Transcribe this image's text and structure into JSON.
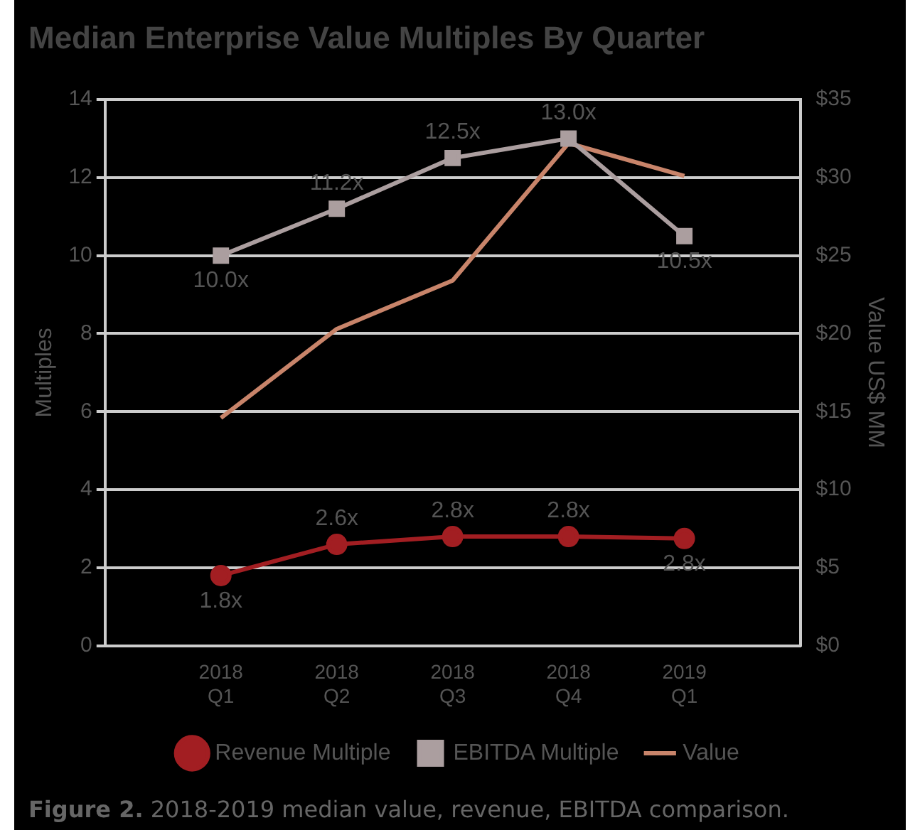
{
  "chart_data": {
    "type": "line",
    "title": "Median Enterprise Value Multiples By Quarter",
    "ylabel": "Multiples",
    "y2label": "Value US$ MM",
    "categories": [
      "2018 Q1",
      "2018 Q2",
      "2018 Q3",
      "2018 Q4",
      "2019 Q1"
    ],
    "series": [
      {
        "name": "Revenue Multiple",
        "color": "#a21e22",
        "marker": "circle",
        "values": [
          1.8,
          2.6,
          2.8,
          2.8,
          2.75
        ],
        "value_labels": [
          "1.8x",
          "2.6x",
          "2.8x",
          "2.8x",
          "2.8x"
        ]
      },
      {
        "name": "EBITDA Multiple",
        "color": "#ab9e9f",
        "marker": "square",
        "values": [
          10.0,
          11.2,
          12.5,
          13.0,
          10.5
        ],
        "value_labels": [
          "10.0x",
          "11.2x",
          "12.5x",
          "13.0x",
          "10.5x"
        ]
      },
      {
        "name": "Value",
        "color": "#c8846a",
        "marker": "none",
        "axis": "y2",
        "values": [
          14.6,
          20.3,
          23.4,
          32.2,
          30.1
        ]
      }
    ],
    "ylim": [
      0,
      14
    ],
    "yticks": [
      0,
      2,
      4,
      6,
      8,
      10,
      12,
      14
    ],
    "y2lim": [
      0,
      35
    ],
    "y2ticks": [
      {
        "value": 0,
        "label": "$0"
      },
      {
        "value": 5,
        "label": "$5"
      },
      {
        "value": 10,
        "label": "$10"
      },
      {
        "value": 15,
        "label": "$15"
      },
      {
        "value": 20,
        "label": "$20"
      },
      {
        "value": 25,
        "label": "$25"
      },
      {
        "value": 30,
        "label": "$30"
      },
      {
        "value": 35,
        "label": "$35"
      }
    ],
    "grid": "y",
    "legend": "bottom",
    "line_style": "solid",
    "annotations": [
      "Figure 2. 2018-2019 median value, revenue, EBITDA comparison."
    ]
  }
}
